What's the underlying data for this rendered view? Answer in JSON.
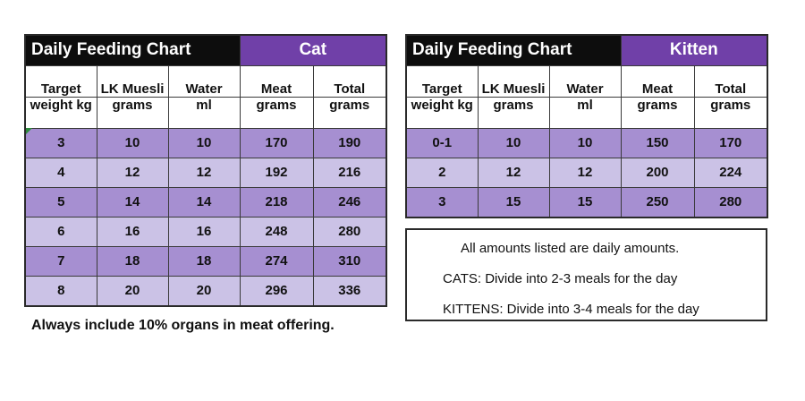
{
  "cat": {
    "title": "Daily Feeding Chart",
    "label": "Cat",
    "headers": [
      [
        "Target",
        "weight kg"
      ],
      [
        "LK Muesli",
        "grams"
      ],
      [
        "Water",
        "ml"
      ],
      [
        "Meat",
        "grams"
      ],
      [
        "Total",
        "grams"
      ]
    ],
    "rows": [
      [
        "3",
        "10",
        "10",
        "170",
        "190"
      ],
      [
        "4",
        "12",
        "12",
        "192",
        "216"
      ],
      [
        "5",
        "14",
        "14",
        "218",
        "246"
      ],
      [
        "6",
        "16",
        "16",
        "248",
        "280"
      ],
      [
        "7",
        "18",
        "18",
        "274",
        "310"
      ],
      [
        "8",
        "20",
        "20",
        "296",
        "336"
      ]
    ]
  },
  "kitten": {
    "title": "Daily Feeding Chart",
    "label": "Kitten",
    "headers": [
      [
        "Target",
        "weight kg"
      ],
      [
        "LK Muesli",
        "grams"
      ],
      [
        "Water",
        "ml"
      ],
      [
        "Meat",
        "grams"
      ],
      [
        "Total",
        "grams"
      ]
    ],
    "rows": [
      [
        "0-1",
        "10",
        "10",
        "150",
        "170"
      ],
      [
        "2",
        "12",
        "12",
        "200",
        "224"
      ],
      [
        "3",
        "15",
        "15",
        "250",
        "280"
      ]
    ]
  },
  "notes": {
    "line1": "All amounts listed are daily amounts.",
    "line2": "CATS: Divide into 2-3 meals for the day",
    "line3": "KITTENS: Divide into 3-4 meals for the day"
  },
  "footnote": "Always include 10% organs in meat offering.",
  "colors": {
    "title_black": "#0d0d0d",
    "title_purple": "#7040a8",
    "row_dark": "#a68fd1",
    "row_light": "#cbc2e6"
  }
}
